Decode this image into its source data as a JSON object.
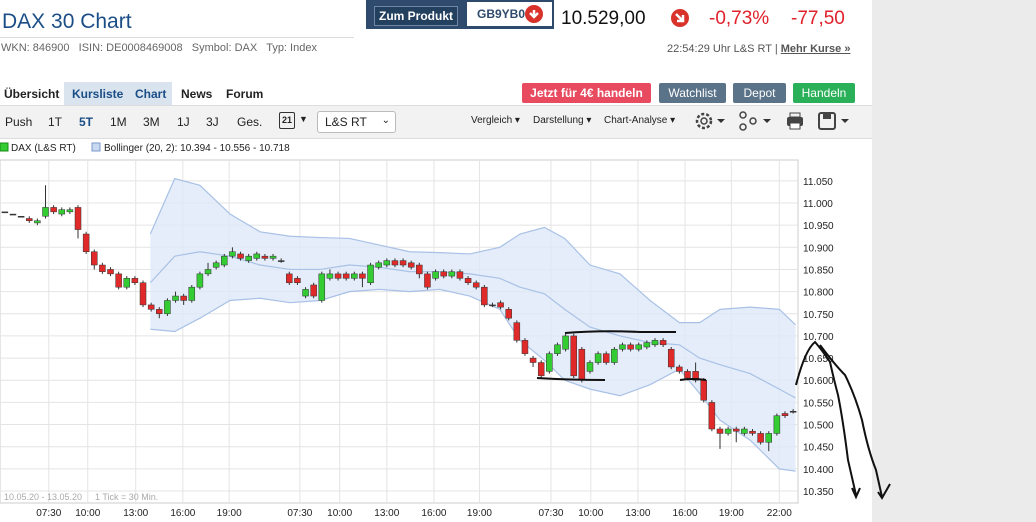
{
  "header": {
    "title": "DAX 30 Chart",
    "wkn": "WKN: 846900",
    "isin": "ISIN: DE0008469008",
    "symbol": "Symbol: DAX",
    "type": "Typ: Index",
    "product_button": "Zum Produkt",
    "product_code": "GB9YB0",
    "price": "10.529,00",
    "change_pct": "-0,73%",
    "change_abs": "-77,50",
    "timestamp": "22:54:29 Uhr L&S RT",
    "more_link": "Mehr Kurse »"
  },
  "tabs": [
    "Übersicht",
    "Kursliste",
    "Chart",
    "News",
    "Forum"
  ],
  "actions": [
    "Jetzt für 4€ handeln",
    "Watchlist",
    "Depot",
    "Handeln"
  ],
  "periods": [
    "Push",
    "1T",
    "5T",
    "1M",
    "3M",
    "1J",
    "3J",
    "Ges."
  ],
  "toolbar": {
    "calendar": "21",
    "exchange": "L&S RT",
    "menus": [
      "Vergleich",
      "Darstellung",
      "Chart-Analyse"
    ]
  },
  "footer": {
    "range": "10.05.20 - 13.05.20",
    "tick": "1 Tick = 30 Min."
  },
  "chart_data": {
    "type": "candlestick",
    "legend": [
      "DAX (L&S RT)",
      "Bollinger (20, 2): 10.394 - 10.556 - 10.718"
    ],
    "up_color": "#33cc33",
    "down_color": "#e02a2a",
    "band_color": "#a9c1e6",
    "grid": true,
    "xlim": [
      -0.6,
      97.6
    ],
    "ylim": [
      10.323,
      11.097
    ],
    "xticks": [
      {
        "value": 5.4,
        "label": "07:30"
      },
      {
        "value": 10.2,
        "label": "10:00"
      },
      {
        "value": 16.1,
        "label": "13:00"
      },
      {
        "value": 21.9,
        "label": "16:00"
      },
      {
        "value": 27.6,
        "label": "19:00"
      },
      {
        "value": 36.3,
        "label": "07:30"
      },
      {
        "value": 41.2,
        "label": "10:00"
      },
      {
        "value": 47.0,
        "label": "13:00"
      },
      {
        "value": 52.8,
        "label": "16:00"
      },
      {
        "value": 58.4,
        "label": "19:00"
      },
      {
        "value": 67.2,
        "label": "07:30"
      },
      {
        "value": 72.1,
        "label": "10:00"
      },
      {
        "value": 77.9,
        "label": "13:00"
      },
      {
        "value": 83.7,
        "label": "16:00"
      },
      {
        "value": 89.4,
        "label": "19:00"
      },
      {
        "value": 95.3,
        "label": "22:00"
      }
    ],
    "yticks": [
      {
        "value": 10.35,
        "label": "10.350"
      },
      {
        "value": 10.4,
        "label": "10.400"
      },
      {
        "value": 10.45,
        "label": "10.450"
      },
      {
        "value": 10.5,
        "label": "10.500"
      },
      {
        "value": 10.55,
        "label": "10.550"
      },
      {
        "value": 10.6,
        "label": "10.600"
      },
      {
        "value": 10.65,
        "label": "10.650"
      },
      {
        "value": 10.7,
        "label": "10.700"
      },
      {
        "value": 10.75,
        "label": "10.750"
      },
      {
        "value": 10.8,
        "label": "10.800"
      },
      {
        "value": 10.85,
        "label": "10.850"
      },
      {
        "value": 10.9,
        "label": "10.900"
      },
      {
        "value": 10.95,
        "label": "10.950"
      },
      {
        "value": 11.0,
        "label": "11.000"
      },
      {
        "value": 11.05,
        "label": "11.050"
      }
    ],
    "open": [
      10.98,
      10.975,
      10.97,
      10.965,
      10.955,
      10.97,
      10.99,
      10.975,
      10.98,
      10.99,
      10.93,
      10.89,
      10.86,
      10.85,
      10.84,
      10.81,
      10.83,
      10.82,
      10.77,
      10.76,
      10.75,
      10.78,
      10.79,
      10.78,
      10.81,
      10.84,
      10.855,
      10.86,
      10.88,
      10.885,
      10.87,
      10.875,
      10.88,
      10.875,
      10.87,
      10.84,
      10.83,
      10.79,
      10.815,
      10.78,
      10.83,
      10.84,
      10.84,
      10.83,
      10.84,
      10.82,
      10.855,
      10.86,
      10.87,
      10.87,
      10.865,
      10.86,
      10.84,
      10.83,
      10.845,
      10.835,
      10.845,
      10.83,
      10.82,
      10.81,
      10.77,
      10.775,
      10.76,
      10.73,
      10.69,
      10.65,
      10.64,
      10.62,
      10.66,
      10.67,
      10.7,
      10.67,
      10.62,
      10.64,
      10.66,
      10.64,
      10.67,
      10.68,
      10.67,
      10.675,
      10.68,
      10.69,
      10.67,
      10.63,
      10.62,
      10.62,
      10.6,
      10.55,
      10.49,
      10.48,
      10.49,
      10.48,
      10.485,
      10.48,
      10.46,
      10.48,
      10.525,
      10.53
    ],
    "high": [
      10.98,
      10.975,
      10.97,
      10.97,
      10.965,
      11.04,
      10.995,
      10.99,
      10.99,
      10.995,
      10.935,
      10.895,
      10.865,
      10.855,
      10.845,
      10.835,
      10.835,
      10.825,
      10.775,
      10.765,
      10.785,
      10.8,
      10.795,
      10.815,
      10.845,
      10.865,
      10.87,
      10.885,
      10.9,
      10.89,
      10.885,
      10.89,
      10.885,
      10.885,
      10.875,
      10.845,
      10.835,
      10.81,
      10.82,
      10.845,
      10.85,
      10.845,
      10.845,
      10.845,
      10.845,
      10.865,
      10.87,
      10.875,
      10.875,
      10.875,
      10.87,
      10.865,
      10.845,
      10.85,
      10.85,
      10.85,
      10.85,
      10.835,
      10.825,
      10.815,
      10.775,
      10.78,
      10.765,
      10.735,
      10.695,
      10.655,
      10.645,
      10.665,
      10.685,
      10.705,
      10.705,
      10.675,
      10.645,
      10.665,
      10.665,
      10.675,
      10.685,
      10.685,
      10.685,
      10.69,
      10.695,
      10.695,
      10.675,
      10.635,
      10.625,
      10.64,
      10.605,
      10.555,
      10.495,
      10.495,
      10.495,
      10.495,
      10.49,
      10.485,
      10.485,
      10.525,
      10.53,
      10.535
    ],
    "low": [
      10.98,
      10.975,
      10.97,
      10.955,
      10.95,
      10.965,
      10.975,
      10.97,
      10.975,
      10.92,
      10.885,
      10.85,
      10.84,
      10.835,
      10.805,
      10.805,
      10.815,
      10.765,
      10.755,
      10.74,
      10.745,
      10.775,
      10.77,
      10.775,
      10.805,
      10.835,
      10.85,
      10.855,
      10.875,
      10.87,
      10.865,
      10.87,
      10.87,
      10.87,
      10.865,
      10.815,
      10.815,
      10.785,
      10.785,
      10.775,
      10.825,
      10.825,
      10.825,
      10.825,
      10.81,
      10.815,
      10.85,
      10.855,
      10.855,
      10.855,
      10.85,
      10.83,
      10.805,
      10.825,
      10.83,
      10.83,
      10.825,
      10.815,
      10.805,
      10.765,
      10.765,
      10.76,
      10.735,
      10.685,
      10.655,
      10.63,
      10.605,
      10.615,
      10.655,
      10.665,
      10.605,
      10.595,
      10.615,
      10.635,
      10.635,
      10.635,
      10.665,
      10.665,
      10.665,
      10.67,
      10.675,
      10.675,
      10.625,
      10.615,
      10.6,
      10.595,
      10.55,
      10.485,
      10.445,
      10.475,
      10.46,
      10.475,
      10.475,
      10.455,
      10.44,
      10.475,
      10.515,
      10.525
    ],
    "close": [
      10.98,
      10.975,
      10.97,
      10.96,
      10.96,
      10.99,
      10.98,
      10.985,
      10.985,
      10.94,
      10.89,
      10.86,
      10.845,
      10.84,
      10.81,
      10.83,
      10.82,
      10.77,
      10.76,
      10.75,
      10.78,
      10.79,
      10.78,
      10.81,
      10.84,
      10.85,
      10.865,
      10.88,
      10.89,
      10.875,
      10.88,
      10.885,
      10.875,
      10.88,
      10.87,
      10.82,
      10.82,
      10.805,
      10.79,
      10.84,
      10.84,
      10.83,
      10.83,
      10.84,
      10.83,
      10.86,
      10.865,
      10.87,
      10.86,
      10.86,
      10.855,
      10.84,
      10.81,
      10.845,
      10.835,
      10.845,
      10.83,
      10.82,
      10.81,
      10.77,
      10.77,
      10.765,
      10.74,
      10.69,
      10.66,
      10.64,
      10.61,
      10.66,
      10.68,
      10.7,
      10.61,
      10.6,
      10.64,
      10.66,
      10.64,
      10.67,
      10.68,
      10.67,
      10.68,
      10.685,
      10.69,
      10.68,
      10.63,
      10.62,
      10.605,
      10.6,
      10.555,
      10.49,
      10.48,
      10.49,
      10.485,
      10.49,
      10.48,
      10.46,
      10.48,
      10.52,
      10.52,
      10.53
    ],
    "bollinger": {
      "x": [
        17.9,
        20.9,
        24,
        27.7,
        31.4,
        35.1,
        38.8,
        42.4,
        46.1,
        49.8,
        53.5,
        57.2,
        60.9,
        63.4,
        66.4,
        68.9,
        72,
        75.7,
        79.4,
        83,
        85.5,
        88,
        91.7,
        95.3,
        97.3
      ],
      "upper": [
        10.93,
        11.055,
        11.04,
        10.975,
        10.935,
        10.925,
        10.922,
        10.92,
        10.905,
        10.89,
        10.888,
        10.885,
        10.9,
        10.93,
        10.945,
        10.92,
        10.86,
        10.84,
        10.78,
        10.73,
        10.73,
        10.76,
        10.765,
        10.76,
        10.725
      ],
      "middle": [
        10.82,
        10.88,
        10.89,
        10.88,
        10.86,
        10.85,
        10.85,
        10.86,
        10.855,
        10.845,
        10.845,
        10.84,
        10.83,
        10.81,
        10.795,
        10.76,
        10.72,
        10.7,
        10.685,
        10.68,
        10.65,
        10.635,
        10.615,
        10.58,
        10.56
      ],
      "lower": [
        10.715,
        10.71,
        10.74,
        10.78,
        10.785,
        10.775,
        10.78,
        10.8,
        10.805,
        10.8,
        10.805,
        10.79,
        10.76,
        10.69,
        10.645,
        10.6,
        10.58,
        10.565,
        10.59,
        10.625,
        10.57,
        10.51,
        10.465,
        10.4,
        10.395
      ]
    }
  }
}
